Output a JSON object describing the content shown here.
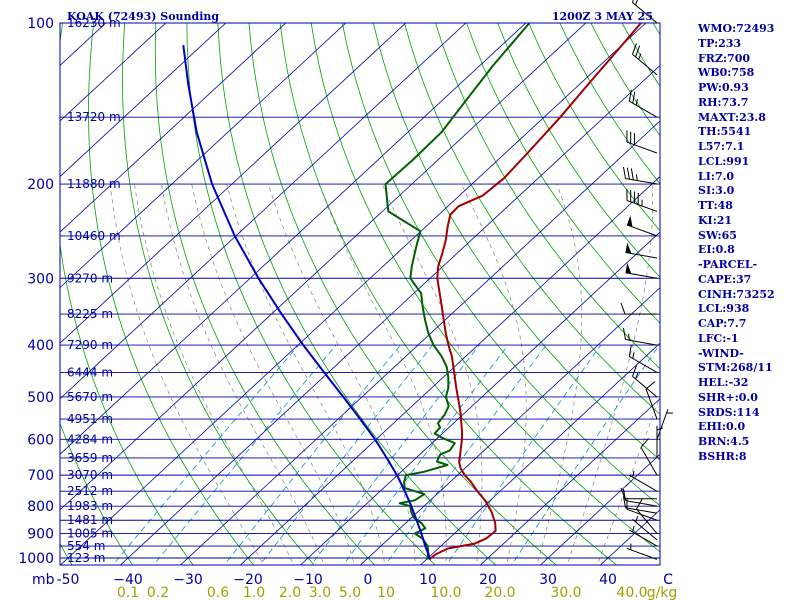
{
  "chart_data": {
    "type": "line",
    "title": "KOAK (72493) Sounding",
    "time": "1200Z  3 MAY 25",
    "pressure_unit": "mb",
    "mixing_ratio_unit": "g/kg",
    "y_pressure_ticks": [
      {
        "p": 100,
        "label": "100"
      },
      {
        "p": 200,
        "label": "200"
      },
      {
        "p": 300,
        "label": "300"
      },
      {
        "p": 400,
        "label": "400"
      },
      {
        "p": 500,
        "label": "500"
      },
      {
        "p": 600,
        "label": "600"
      },
      {
        "p": 700,
        "label": "700"
      },
      {
        "p": 800,
        "label": "800"
      },
      {
        "p": 900,
        "label": "900"
      },
      {
        "p": 1000,
        "label": "1000"
      }
    ],
    "x_temperature_ticks": [
      {
        "t": -50,
        "label": "-50"
      },
      {
        "t": -40,
        "label": "−40"
      },
      {
        "t": -30,
        "label": "−30"
      },
      {
        "t": -20,
        "label": "−20"
      },
      {
        "t": -10,
        "label": "−10"
      },
      {
        "t": 0,
        "label": "0"
      },
      {
        "t": 10,
        "label": "10"
      },
      {
        "t": 20,
        "label": "20"
      },
      {
        "t": 30,
        "label": "30"
      },
      {
        "t": 40,
        "label": "40"
      },
      {
        "t": 50,
        "label": "C"
      }
    ],
    "mixing_ratio_labels": [
      {
        "t": -40,
        "label": "0.1"
      },
      {
        "t": -35,
        "label": "0.2"
      },
      {
        "t": -25,
        "label": "0.6"
      },
      {
        "t": -19,
        "label": "1.0"
      },
      {
        "t": -13,
        "label": "2.0"
      },
      {
        "t": -8,
        "label": "3.0"
      },
      {
        "t": -3,
        "label": "5.0"
      },
      {
        "t": 3,
        "label": "10"
      },
      {
        "t": 13,
        "label": "10.0"
      },
      {
        "t": 22,
        "label": "20.0"
      },
      {
        "t": 33,
        "label": "30.0"
      },
      {
        "t": 44,
        "label": "40.0"
      },
      {
        "t": 49,
        "label": "g/kg"
      }
    ],
    "height_labels": [
      {
        "p": 100,
        "label": "16230 m"
      },
      {
        "p": 150,
        "label": "13720 m"
      },
      {
        "p": 200,
        "label": "11880 m"
      },
      {
        "p": 250,
        "label": "10460 m"
      },
      {
        "p": 300,
        "label": "9270 m"
      },
      {
        "p": 350,
        "label": "8225 m"
      },
      {
        "p": 400,
        "label": "7290 m"
      },
      {
        "p": 450,
        "label": "6444 m"
      },
      {
        "p": 500,
        "label": "5670 m"
      },
      {
        "p": 550,
        "label": "4951 m"
      },
      {
        "p": 600,
        "label": "4284 m"
      },
      {
        "p": 650,
        "label": "3659 m"
      },
      {
        "p": 700,
        "label": "3070 m"
      },
      {
        "p": 750,
        "label": "2512 m"
      },
      {
        "p": 800,
        "label": "1983 m"
      },
      {
        "p": 850,
        "label": "1481 m"
      },
      {
        "p": 900,
        "label": "1005 m"
      },
      {
        "p": 950,
        "label": "554 m"
      },
      {
        "p": 1000,
        "label": "123 m"
      }
    ],
    "series": [
      {
        "name": "Temperature",
        "color": "#a00000",
        "points": [
          {
            "p": 1006,
            "t": 10.5
          },
          {
            "p": 985,
            "t": 10.6
          },
          {
            "p": 960,
            "t": 11.6
          },
          {
            "p": 940,
            "t": 15.2
          },
          {
            "p": 920,
            "t": 16.2
          },
          {
            "p": 890,
            "t": 16.4
          },
          {
            "p": 860,
            "t": 14.9
          },
          {
            "p": 820,
            "t": 12.3
          },
          {
            "p": 780,
            "t": 9.1
          },
          {
            "p": 750,
            "t": 6.2
          },
          {
            "p": 720,
            "t": 3.4
          },
          {
            "p": 700,
            "t": 1.2
          },
          {
            "p": 680,
            "t": -0.7
          },
          {
            "p": 660,
            "t": -2.2
          },
          {
            "p": 640,
            "t": -3.3
          },
          {
            "p": 620,
            "t": -4.5
          },
          {
            "p": 600,
            "t": -5.7
          },
          {
            "p": 580,
            "t": -7.1
          },
          {
            "p": 560,
            "t": -8.7
          },
          {
            "p": 540,
            "t": -10.3
          },
          {
            "p": 520,
            "t": -12.1
          },
          {
            "p": 500,
            "t": -14.0
          },
          {
            "p": 480,
            "t": -16.0
          },
          {
            "p": 460,
            "t": -18.0
          },
          {
            "p": 440,
            "t": -20.1
          },
          {
            "p": 420,
            "t": -22.3
          },
          {
            "p": 400,
            "t": -24.9
          },
          {
            "p": 380,
            "t": -27.5
          },
          {
            "p": 360,
            "t": -30.1
          },
          {
            "p": 340,
            "t": -32.8
          },
          {
            "p": 320,
            "t": -35.7
          },
          {
            "p": 300,
            "t": -38.8
          },
          {
            "p": 285,
            "t": -40.8
          },
          {
            "p": 270,
            "t": -42.4
          },
          {
            "p": 255,
            "t": -44.2
          },
          {
            "p": 240,
            "t": -46.4
          },
          {
            "p": 228,
            "t": -48.1
          },
          {
            "p": 220,
            "t": -48.2
          },
          {
            "p": 210,
            "t": -46.1
          },
          {
            "p": 195,
            "t": -45.7
          },
          {
            "p": 175,
            "t": -46.3
          },
          {
            "p": 150,
            "t": -47.3
          },
          {
            "p": 130,
            "t": -48.6
          },
          {
            "p": 115,
            "t": -49.6
          },
          {
            "p": 100,
            "t": -50.8
          }
        ]
      },
      {
        "name": "Dewpoint",
        "color": "#006000",
        "points": [
          {
            "p": 1006,
            "t": 10.1
          },
          {
            "p": 980,
            "t": 9.2
          },
          {
            "p": 950,
            "t": 7.8
          },
          {
            "p": 920,
            "t": 5.6
          },
          {
            "p": 900,
            "t": 3.4
          },
          {
            "p": 880,
            "t": 4.2
          },
          {
            "p": 860,
            "t": 2.6
          },
          {
            "p": 840,
            "t": 0.3
          },
          {
            "p": 820,
            "t": -1.1
          },
          {
            "p": 800,
            "t": -2.3
          },
          {
            "p": 790,
            "t": -4.6
          },
          {
            "p": 780,
            "t": -2.6
          },
          {
            "p": 760,
            "t": -2.1
          },
          {
            "p": 750,
            "t": -4.2
          },
          {
            "p": 740,
            "t": -6.5
          },
          {
            "p": 720,
            "t": -7.7
          },
          {
            "p": 700,
            "t": -8.6
          },
          {
            "p": 690,
            "t": -6.2
          },
          {
            "p": 670,
            "t": -3.5
          },
          {
            "p": 660,
            "t": -5.9
          },
          {
            "p": 640,
            "t": -6.6
          },
          {
            "p": 630,
            "t": -5.7
          },
          {
            "p": 610,
            "t": -6.2
          },
          {
            "p": 595,
            "t": -9.5
          },
          {
            "p": 585,
            "t": -11.3
          },
          {
            "p": 570,
            "t": -11.5
          },
          {
            "p": 560,
            "t": -12.6
          },
          {
            "p": 540,
            "t": -13.0
          },
          {
            "p": 520,
            "t": -13.9
          },
          {
            "p": 500,
            "t": -16.0
          },
          {
            "p": 480,
            "t": -17.3
          },
          {
            "p": 460,
            "t": -19.1
          },
          {
            "p": 440,
            "t": -21.2
          },
          {
            "p": 420,
            "t": -24.0
          },
          {
            "p": 400,
            "t": -27.4
          },
          {
            "p": 380,
            "t": -30.4
          },
          {
            "p": 360,
            "t": -33.2
          },
          {
            "p": 340,
            "t": -36.0
          },
          {
            "p": 320,
            "t": -38.8
          },
          {
            "p": 300,
            "t": -43.3
          },
          {
            "p": 285,
            "t": -45.2
          },
          {
            "p": 265,
            "t": -47.6
          },
          {
            "p": 245,
            "t": -50.1
          },
          {
            "p": 225,
            "t": -59.0
          },
          {
            "p": 200,
            "t": -64.4
          },
          {
            "p": 180,
            "t": -64.2
          },
          {
            "p": 160,
            "t": -64.4
          },
          {
            "p": 140,
            "t": -66.0
          },
          {
            "p": 120,
            "t": -67.8
          },
          {
            "p": 100,
            "t": -69.4
          }
        ]
      },
      {
        "name": "Parcel",
        "color": "#0000c0",
        "points": [
          {
            "p": 1006,
            "t": 10.5
          },
          {
            "p": 991,
            "t": 9.8
          },
          {
            "p": 950,
            "t": 7.4
          },
          {
            "p": 900,
            "t": 4.5
          },
          {
            "p": 850,
            "t": 1.3
          },
          {
            "p": 800,
            "t": -2.1
          },
          {
            "p": 750,
            "t": -5.9
          },
          {
            "p": 700,
            "t": -10.1
          },
          {
            "p": 650,
            "t": -14.9
          },
          {
            "p": 600,
            "t": -20.2
          },
          {
            "p": 550,
            "t": -26.3
          },
          {
            "p": 500,
            "t": -33.1
          },
          {
            "p": 450,
            "t": -40.7
          },
          {
            "p": 400,
            "t": -49.1
          },
          {
            "p": 350,
            "t": -58.3
          },
          {
            "p": 300,
            "t": -68.6
          },
          {
            "p": 250,
            "t": -80.2
          },
          {
            "p": 200,
            "t": -93.3
          },
          {
            "p": 160,
            "t": -105.2
          },
          {
            "p": 130,
            "t": -115.3
          },
          {
            "p": 110,
            "t": -123.1
          }
        ]
      }
    ],
    "wind_barbs": [
      {
        "p": 1006,
        "dir": 290,
        "spd": 5
      },
      {
        "p": 950,
        "dir": 300,
        "spd": 5
      },
      {
        "p": 925,
        "dir": 310,
        "spd": 5
      },
      {
        "p": 900,
        "dir": 320,
        "spd": 10
      },
      {
        "p": 850,
        "dir": 290,
        "spd": 10
      },
      {
        "p": 825,
        "dir": 280,
        "spd": 10
      },
      {
        "p": 800,
        "dir": 280,
        "spd": 10
      },
      {
        "p": 775,
        "dir": 270,
        "spd": 10
      },
      {
        "p": 750,
        "dir": 300,
        "spd": 5
      },
      {
        "p": 700,
        "dir": 330,
        "spd": 10
      },
      {
        "p": 650,
        "dir": 0,
        "spd": 5
      },
      {
        "p": 600,
        "dir": 20,
        "spd": 5
      },
      {
        "p": 550,
        "dir": 340,
        "spd": 10
      },
      {
        "p": 500,
        "dir": 310,
        "spd": 15
      },
      {
        "p": 450,
        "dir": 300,
        "spd": 15
      },
      {
        "p": 400,
        "dir": 280,
        "spd": 15
      },
      {
        "p": 350,
        "dir": 270,
        "spd": 10
      },
      {
        "p": 300,
        "dir": 280,
        "spd": 50
      },
      {
        "p": 275,
        "dir": 280,
        "spd": 50
      },
      {
        "p": 250,
        "dir": 290,
        "spd": 50
      },
      {
        "p": 225,
        "dir": 290,
        "spd": 45
      },
      {
        "p": 200,
        "dir": 280,
        "spd": 35
      },
      {
        "p": 175,
        "dir": 290,
        "spd": 30
      },
      {
        "p": 150,
        "dir": 300,
        "spd": 25
      },
      {
        "p": 125,
        "dir": 310,
        "spd": 25
      },
      {
        "p": 100,
        "dir": 310,
        "spd": 20
      }
    ]
  },
  "indices": [
    "WMO:72493",
    "TP:233",
    "FRZ:700",
    "WB0:758",
    "PW:0.93",
    "RH:73.7",
    "MAXT:23.8",
    "TH:5541",
    "L57:7.1",
    "LCL:991",
    "LI:7.0",
    "SI:3.0",
    "TT:48",
    "KI:21",
    "SW:65",
    "EI:0.8",
    "-PARCEL-",
    "CAPE:37",
    "CINH:73252",
    "LCL:938",
    "CAP:7.7",
    "LFC:-1",
    "-WIND-",
    "STM:268/11",
    "HEL:-32",
    "SHR+:0.0",
    "SRDS:114",
    "EHI:0.0",
    "BRN:4.5",
    "BSHR:8"
  ],
  "colors": {
    "frame": "#0000a0",
    "isotherm": "#0000a0",
    "dry_adiabat": "#00a000",
    "moist_adiabat": "#808080",
    "mixing_ratio": "#0090c0",
    "temperature": "#a00000",
    "dewpoint": "#006000",
    "parcel": "#0000c0",
    "barb": "#000000"
  }
}
